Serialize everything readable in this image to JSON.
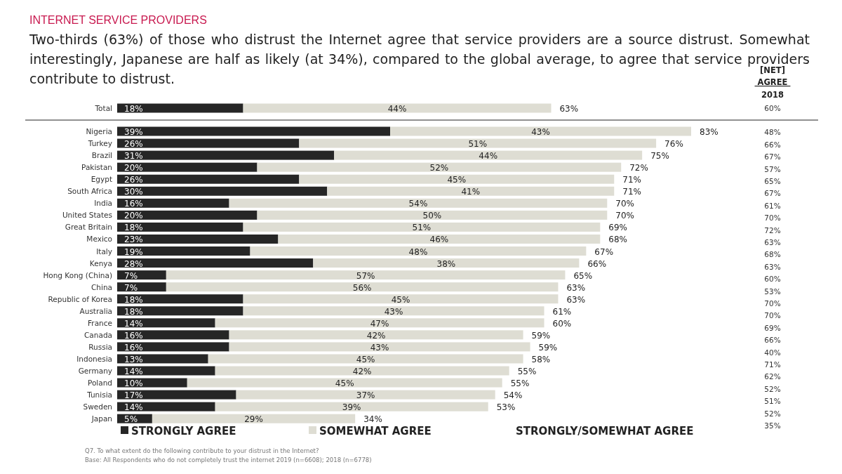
{
  "chart_data": {
    "type": "bar",
    "orientation": "horizontal",
    "stacked": true,
    "title": "INTERNET SERVICE PROVIDERS",
    "subtitle": "Two-thirds (63%) of those who distrust the Internet agree that service providers are a source distrust. Somewhat interestingly, Japanese are half as likely (at 34%), compared to the global average, to agree that service providers contribute to distrust.",
    "categories": [
      "Total",
      "Nigeria",
      "Turkey",
      "Brazil",
      "Pakistan",
      "Egypt",
      "South Africa",
      "India",
      "United States",
      "Great Britain",
      "Mexico",
      "Italy",
      "Kenya",
      "Hong Kong (China)",
      "China",
      "Republic of Korea",
      "Australia",
      "France",
      "Canada",
      "Russia",
      "Indonesia",
      "Germany",
      "Poland",
      "Tunisia",
      "Sweden",
      "Japan"
    ],
    "series": [
      {
        "name": "STRONGLY AGREE",
        "color": "#262626",
        "values": [
          18,
          39,
          26,
          31,
          20,
          26,
          30,
          16,
          20,
          18,
          23,
          19,
          28,
          7,
          7,
          18,
          18,
          14,
          16,
          16,
          13,
          14,
          10,
          17,
          14,
          5
        ],
        "value_labels": [
          "18%",
          "39%",
          "26%",
          "31%",
          "20%",
          "26%",
          "30%",
          "16%",
          "20%",
          "18%",
          "23%",
          "19%",
          "28%",
          "7%",
          "7%",
          "18%",
          "18%",
          "14%",
          "16%",
          "16%",
          "13%",
          "14%",
          "10%",
          "17%",
          "14%",
          "5%"
        ]
      },
      {
        "name": "SOMEWHAT AGREE",
        "color": "#deddd3",
        "values": [
          44,
          43,
          51,
          44,
          52,
          45,
          41,
          54,
          50,
          51,
          46,
          48,
          38,
          57,
          56,
          45,
          43,
          47,
          42,
          43,
          45,
          42,
          45,
          37,
          39,
          29
        ],
        "value_labels": [
          "44%",
          "43%",
          "51%",
          "44%",
          "52%",
          "45%",
          "41%",
          "54%",
          "50%",
          "51%",
          "46%",
          "48%",
          "38%",
          "57%",
          "56%",
          "45%",
          "43%",
          "47%",
          "42%",
          "43%",
          "45%",
          "42%",
          "45%",
          "37%",
          "39%",
          "29%"
        ]
      }
    ],
    "totals": [
      "63%",
      "83%",
      "76%",
      "75%",
      "72%",
      "71%",
      "71%",
      "70%",
      "70%",
      "69%",
      "68%",
      "67%",
      "66%",
      "65%",
      "63%",
      "63%",
      "61%",
      "60%",
      "59%",
      "59%",
      "58%",
      "55%",
      "55%",
      "54%",
      "53%",
      "34%"
    ],
    "legend": "bottom",
    "annotations": [
      "[NET] AGREE 2018",
      "60%",
      "48%",
      "66%",
      "67%",
      "57%",
      "65%",
      "67%",
      "61%",
      "70%",
      "72%",
      "63%",
      "68%",
      "63%",
      "60%",
      "53%",
      "70%",
      "70%",
      "69%",
      "66%",
      "40%",
      "71%",
      "62%",
      "52%",
      "51%",
      "52%",
      "35%",
      "STRONGLY/SOMEWHAT AGREE",
      "Q7.  To what extent do the following contribute to your distrust in the Internet?",
      "Base: All Respondents who do not completely trust the internet 2019 (n=6608); 2018 (n=6778)"
    ]
  }
}
